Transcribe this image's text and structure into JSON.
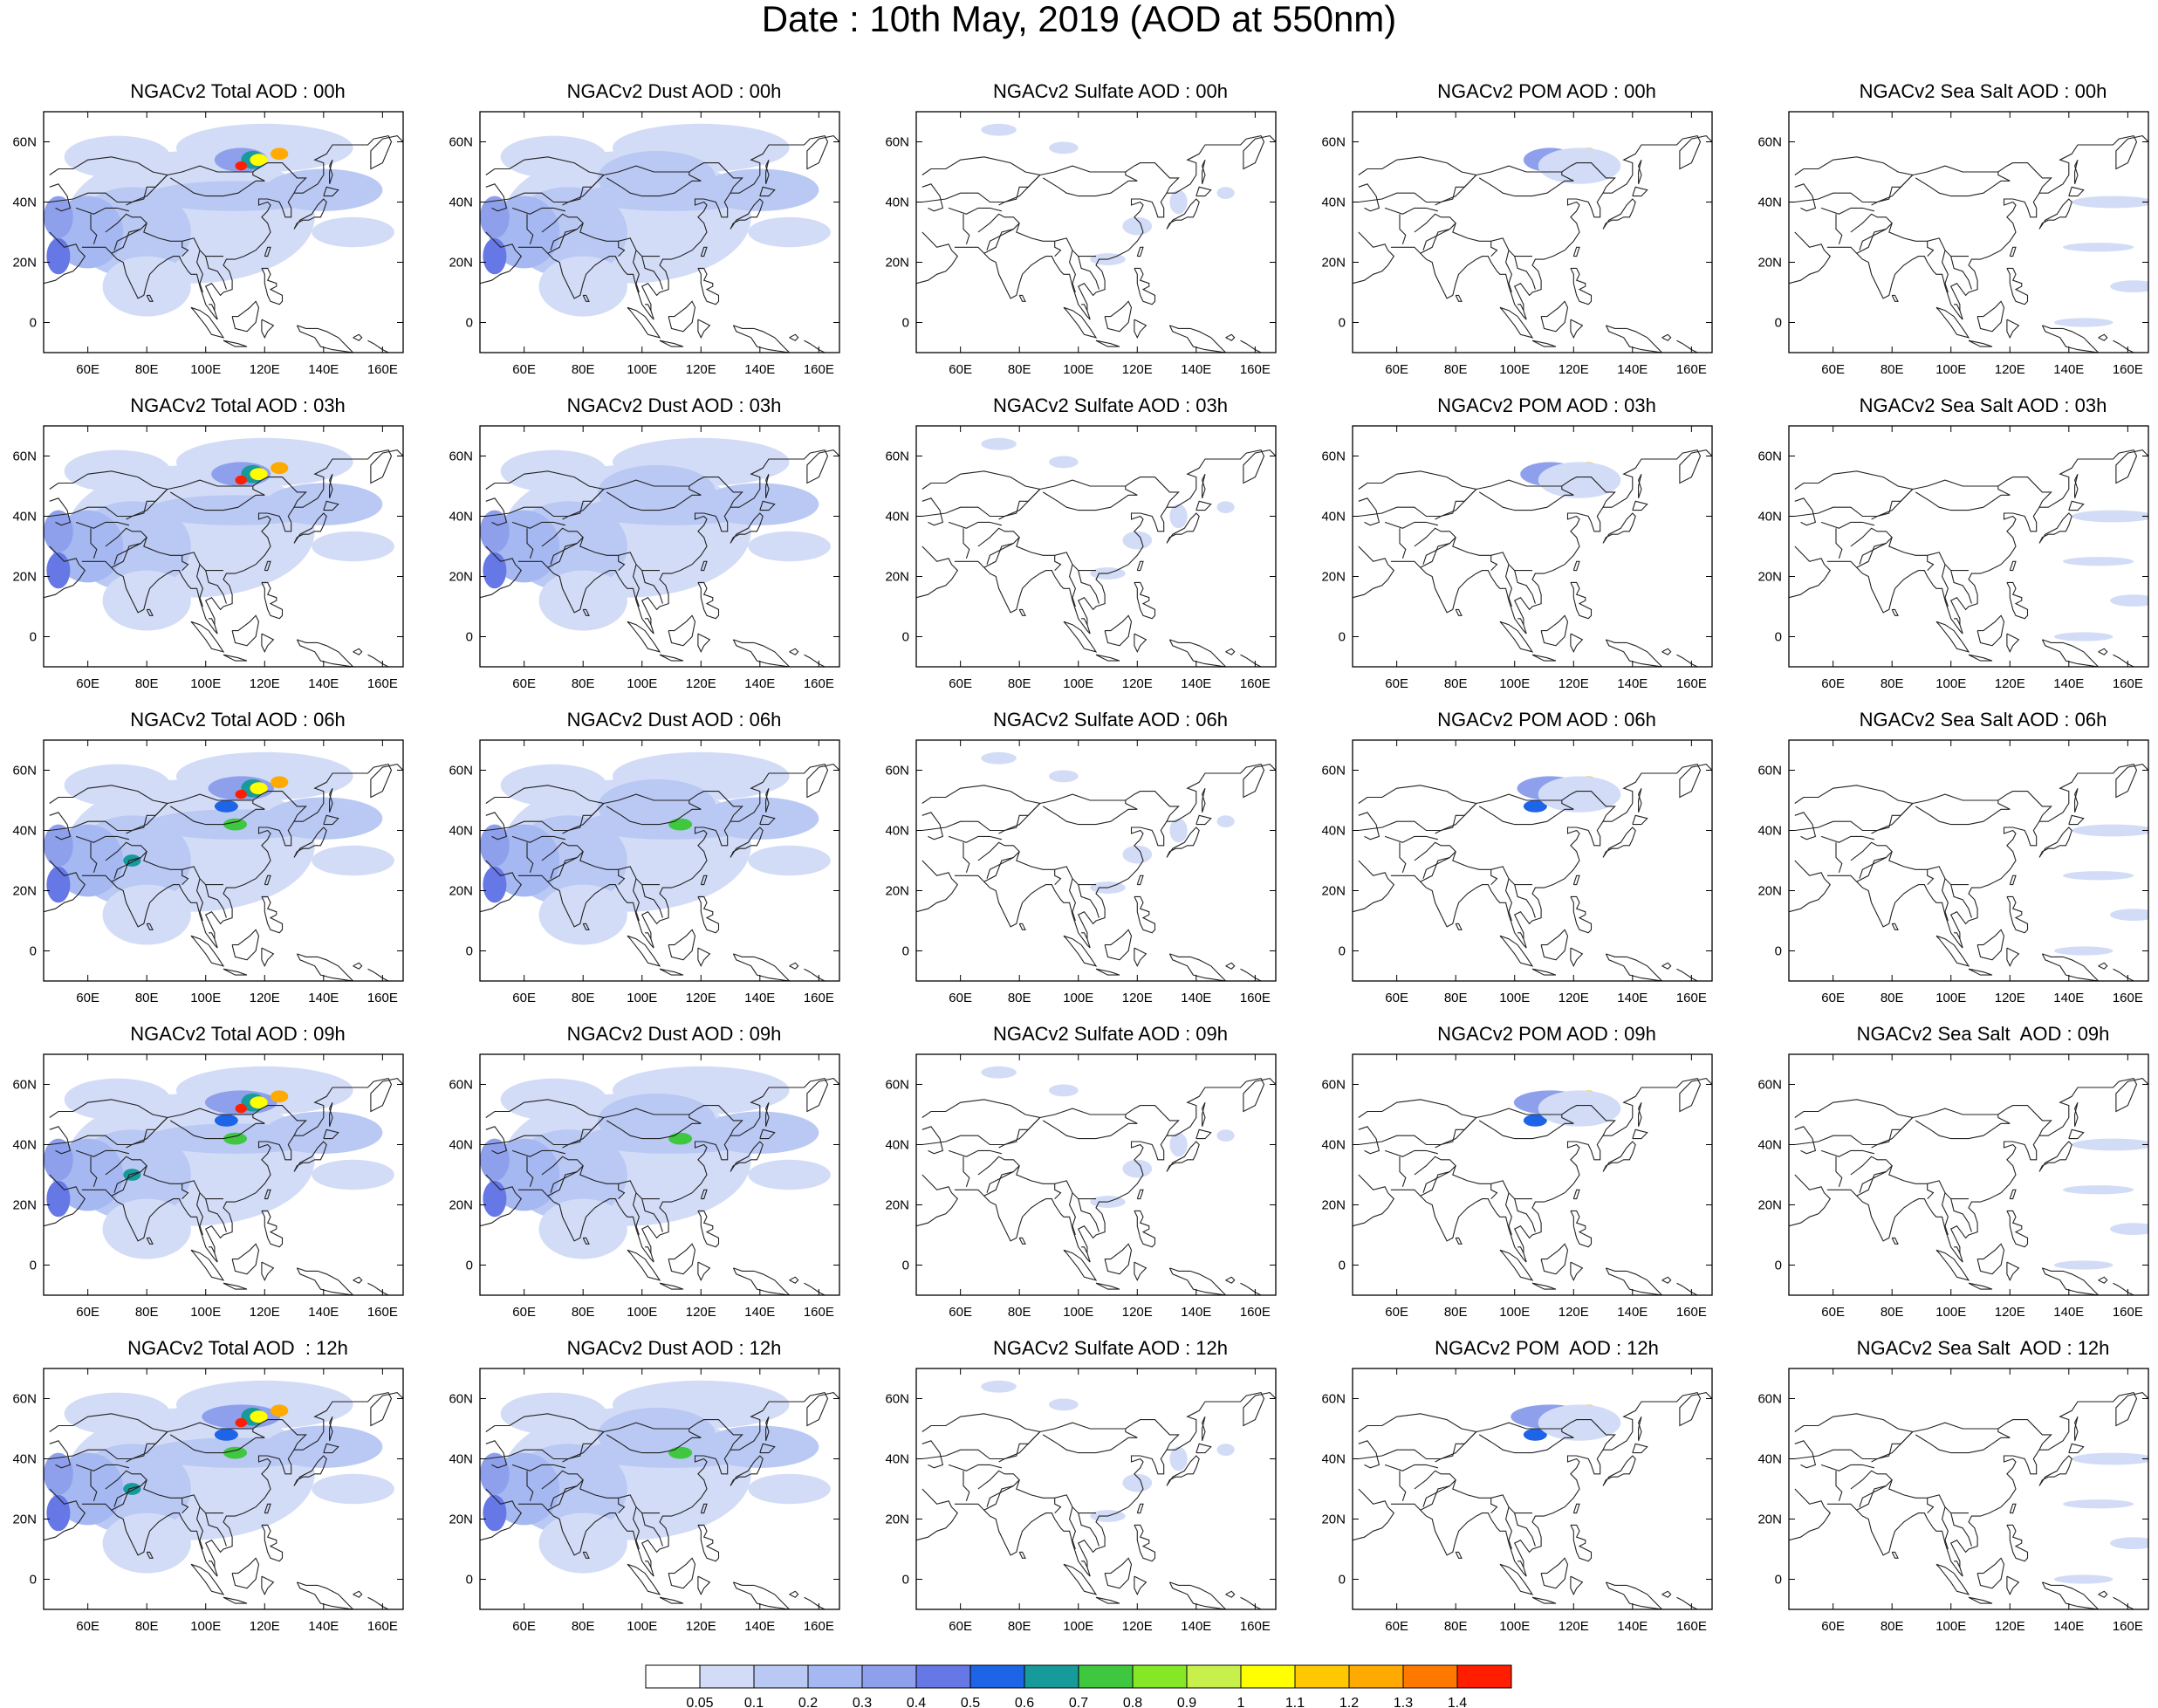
{
  "title": "Date : 10th May, 2019 (AOD at 550nm)",
  "lon_labels": [
    "60E",
    "80E",
    "100E",
    "120E",
    "140E",
    "160E"
  ],
  "lat_labels": [
    "60N",
    "40N",
    "20N",
    "0"
  ],
  "rows": [
    "00h",
    "03h",
    "06h",
    "09h",
    "12h"
  ],
  "columns": [
    "Total",
    "Dust",
    "Sulfate",
    "POM",
    "Sea Salt"
  ],
  "panel_titles": [
    [
      "NGACv2 Total AOD : 00h",
      "NGACv2 Dust AOD : 00h",
      "NGACv2 Sulfate AOD : 00h",
      "NGACv2 POM AOD : 00h",
      "NGACv2 Sea Salt AOD : 00h"
    ],
    [
      "NGACv2 Total AOD : 03h",
      "NGACv2 Dust AOD : 03h",
      "NGACv2 Sulfate AOD : 03h",
      "NGACv2 POM AOD : 03h",
      "NGACv2 Sea Salt AOD : 03h"
    ],
    [
      "NGACv2 Total AOD : 06h",
      "NGACv2 Dust AOD : 06h",
      "NGACv2 Sulfate AOD : 06h",
      "NGACv2 POM AOD : 06h",
      "NGACv2 Sea Salt AOD : 06h"
    ],
    [
      "NGACv2 Total AOD : 09h",
      "NGACv2 Dust AOD : 09h",
      "NGACv2 Sulfate AOD : 09h",
      "NGACv2 POM AOD : 09h",
      "NGACv2 Sea Salt  AOD : 09h"
    ],
    [
      "NGACv2 Total AOD  : 12h",
      "NGACv2 Dust AOD : 12h",
      "NGACv2 Sulfate AOD : 12h",
      "NGACv2 POM  AOD : 12h",
      "NGACv2 Sea Salt  AOD : 12h"
    ]
  ],
  "colorbar": {
    "labels": [
      "0.05",
      "0.1",
      "0.2",
      "0.3",
      "0.4",
      "0.5",
      "0.6",
      "0.7",
      "0.8",
      "0.9",
      "1",
      "1.1",
      "1.2",
      "1.3",
      "1.4"
    ],
    "colors": [
      "#ffffff",
      "#d3dcf7",
      "#bac8f4",
      "#a5b8f2",
      "#8ea0ec",
      "#6677e6",
      "#1e64e6",
      "#179a9a",
      "#3fc83f",
      "#85e826",
      "#c8f04c",
      "#ffff00",
      "#ffc800",
      "#ffaa00",
      "#ff7800",
      "#ff1e00"
    ]
  }
}
